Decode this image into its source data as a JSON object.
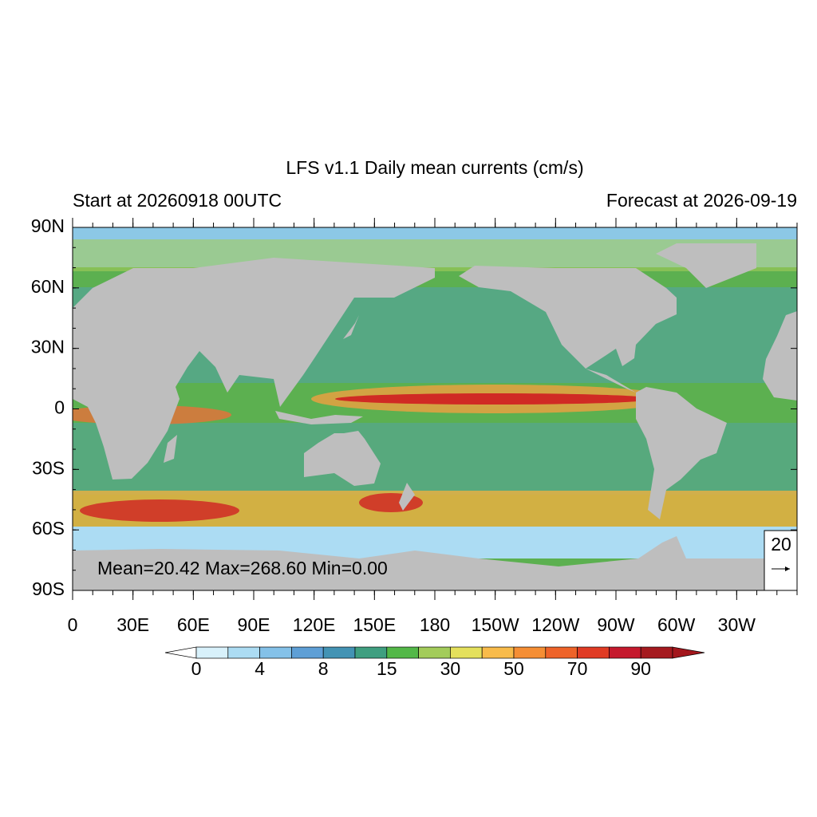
{
  "title": "LFS v1.1 Daily mean currents (cm/s)",
  "subtitle_left": "Start at 20260918 00UTC",
  "subtitle_right": "Forecast at 2026-09-19",
  "lat_labels": [
    "90N",
    "60N",
    "30N",
    "0",
    "30S",
    "60S",
    "90S"
  ],
  "lon_labels": [
    "0",
    "30E",
    "60E",
    "90E",
    "120E",
    "150E",
    "180",
    "150W",
    "120W",
    "90W",
    "60W",
    "30W"
  ],
  "stats": "Mean=20.42  Max=268.60  Min=0.00",
  "reference_vector": "20",
  "colorbar": {
    "labels": [
      0,
      4,
      8,
      15,
      30,
      50,
      70,
      90
    ],
    "colors": [
      "#ffffff",
      "#d8f1fb",
      "#acdcf3",
      "#84c1e8",
      "#5e9fd6",
      "#4393b4",
      "#3f9f80",
      "#53b848",
      "#a3cc5a",
      "#e4e05c",
      "#f8bb4a",
      "#f58e34",
      "#ee6329",
      "#e03b24",
      "#c5192d",
      "#a51a1f",
      "#a3161c"
    ]
  }
}
